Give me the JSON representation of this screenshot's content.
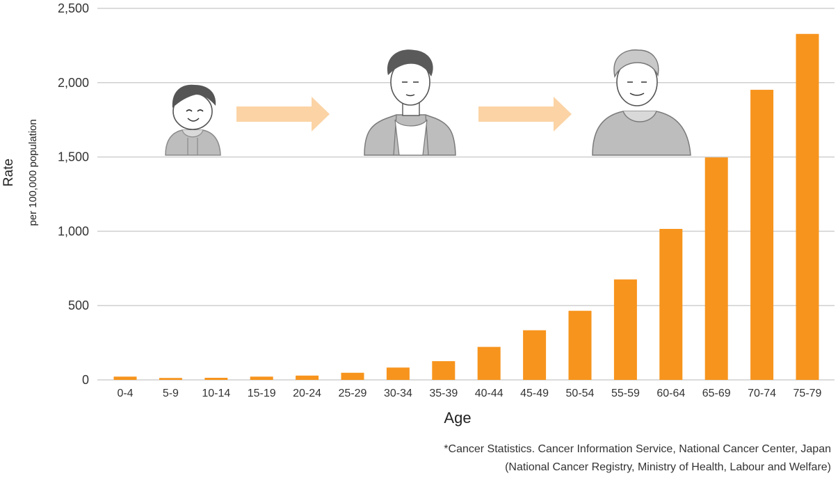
{
  "chart_data": {
    "type": "bar",
    "categories": [
      "0-4",
      "5-9",
      "10-14",
      "15-19",
      "20-24",
      "25-29",
      "30-34",
      "35-39",
      "40-44",
      "45-49",
      "50-54",
      "55-59",
      "60-64",
      "65-69",
      "70-74",
      "75-79"
    ],
    "values": [
      22,
      13,
      14,
      22,
      29,
      48,
      83,
      126,
      222,
      334,
      465,
      676,
      1016,
      1497,
      1952,
      2328
    ],
    "xlabel": "Age",
    "ylabel": "Rate",
    "ylabel_sub": "per 100,000 population",
    "ylim": [
      0,
      2500
    ],
    "yticks": [
      0,
      500,
      1000,
      1500,
      2000,
      2500
    ],
    "ytick_labels": [
      "0",
      "500",
      "1,000",
      "1,500",
      "2,000",
      "2,500"
    ],
    "grid": true,
    "bar_color": "#f7941d",
    "grid_color": "#cfcfcf"
  },
  "source": {
    "line1": "*Cancer Statistics. Cancer Information Service, National Cancer Center, Japan",
    "line2": "(National Cancer Registry, Ministry of Health, Labour and Welfare)"
  },
  "illustration": {
    "figures": [
      "child-figure",
      "adult-figure",
      "elderly-figure"
    ],
    "arrow_color": "#fbd3a5",
    "figure_color": "#bdbdbd"
  }
}
